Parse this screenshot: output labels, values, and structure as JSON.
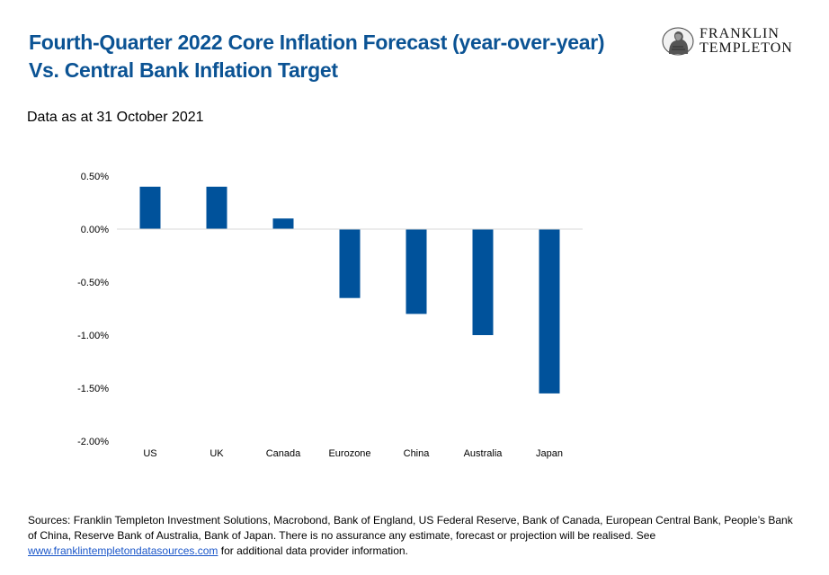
{
  "header": {
    "title_line1": "Fourth-Quarter 2022 Core Inflation Forecast (year-over-year)",
    "title_line2": "Vs. Central Bank Inflation Target",
    "subtitle": "Data as at 31 October 2021"
  },
  "logo": {
    "line1": "FRANKLIN",
    "line2": "TEMPLETON",
    "icon": "benjamin-franklin-portrait-icon"
  },
  "colors": {
    "title": "#0b5394",
    "bar": "#00529b",
    "link": "#1a56c9"
  },
  "chart_data": {
    "type": "bar",
    "title": "",
    "xlabel": "",
    "ylabel": "",
    "categories": [
      "US",
      "UK",
      "Canada",
      "Eurozone",
      "China",
      "Australia",
      "Japan"
    ],
    "values": [
      0.4,
      0.4,
      0.1,
      -0.65,
      -0.8,
      -1.0,
      -1.55
    ],
    "ylim": [
      -2.0,
      0.5
    ],
    "yticks": [
      0.5,
      0.0,
      -0.5,
      -1.0,
      -1.5,
      -2.0
    ],
    "ytick_labels": [
      "0.50%",
      "0.00%",
      "-0.50%",
      "-1.00%",
      "-1.50%",
      "-2.00%"
    ],
    "grid": false,
    "legend": "none"
  },
  "footer": {
    "sources_text": "Sources: Franklin Templeton Investment Solutions, Macrobond, Bank of England, US Federal Reserve, Bank of Canada, European Central Bank, People’s Bank of China, Reserve Bank of Australia, Bank of Japan. There is no assurance any estimate, forecast or projection will be realised. See",
    "link_text": "www.franklintempletondatasources.com",
    "after_link_text": " for additional data provider information."
  }
}
